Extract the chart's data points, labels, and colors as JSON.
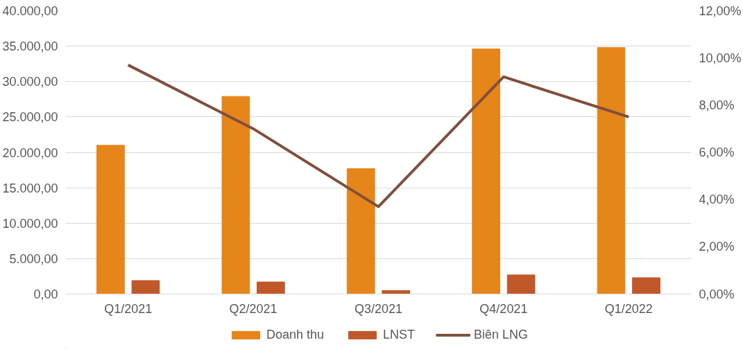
{
  "chart_data": {
    "type": "bar",
    "categories": [
      "Q1/2021",
      "Q2/2021",
      "Q3/2021",
      "Q4/2021",
      "Q1/2022"
    ],
    "series": [
      {
        "name": "Doanh thu",
        "color": "#e6851a",
        "values": [
          21000,
          27900,
          17700,
          34600,
          34800
        ]
      },
      {
        "name": "LNST",
        "color": "#c0582a",
        "values": [
          1900,
          1700,
          500,
          2700,
          2300
        ]
      },
      {
        "name": "Biên LNG",
        "color": "#7f4f3c",
        "type": "line",
        "axis": "y2",
        "values": [
          9.7,
          7.0,
          3.7,
          9.2,
          7.5
        ]
      }
    ],
    "ylim": [
      0,
      40000
    ],
    "yticks": [
      {
        "value": 0,
        "label": "0,00"
      },
      {
        "value": 5000,
        "label": "5.000,00"
      },
      {
        "value": 10000,
        "label": "10.000,00"
      },
      {
        "value": 15000,
        "label": "15.000,00"
      },
      {
        "value": 20000,
        "label": "20.000,00"
      },
      {
        "value": 25000,
        "label": "25.000,00"
      },
      {
        "value": 30000,
        "label": "30.000,00"
      },
      {
        "value": 35000,
        "label": "35.000,00"
      },
      {
        "value": 40000,
        "label": "40.000,00"
      }
    ],
    "y2lim": [
      0,
      12
    ],
    "y2ticks": [
      {
        "value": 0,
        "label": "0,00%"
      },
      {
        "value": 2,
        "label": "2,00%"
      },
      {
        "value": 4,
        "label": "4,00%"
      },
      {
        "value": 6,
        "label": "6,00%"
      },
      {
        "value": 8,
        "label": "8,00%"
      },
      {
        "value": 10,
        "label": "10,00%"
      },
      {
        "value": 12,
        "label": "12,00%"
      }
    ],
    "grid": "y",
    "legend": "bottom",
    "marker": "none",
    "line_style": "solid"
  }
}
